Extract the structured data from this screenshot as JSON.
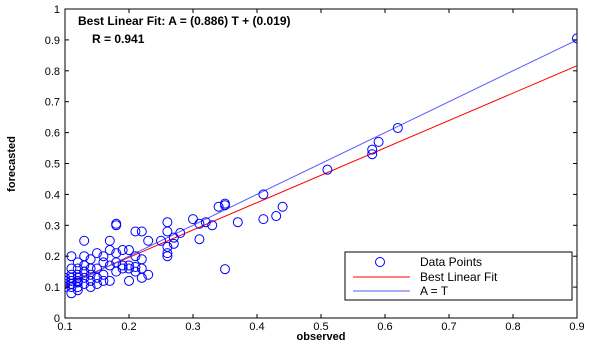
{
  "chart_data": {
    "type": "scatter",
    "xlabel": "observed",
    "ylabel": "forecasted",
    "xlim": [
      0.1,
      0.9
    ],
    "ylim": [
      0,
      1
    ],
    "xticks": [
      "0.1",
      "0.2",
      "0.3",
      "0.4",
      "0.5",
      "0.6",
      "0.7",
      "0.8",
      "0.9"
    ],
    "yticks": [
      "0",
      "0.1",
      "0.2",
      "0.3",
      "0.4",
      "0.5",
      "0.6",
      "0.7",
      "0.8",
      "0.9",
      "1"
    ],
    "grid": false,
    "legend_position": "bottom-right",
    "annotation": {
      "line1": "Best Linear Fit:  A = (0.886) T + (0.019)",
      "line2": "R = 0.941"
    },
    "series": [
      {
        "name": "Data Points",
        "kind": "scatter",
        "marker": "circle",
        "color": "#0000ff",
        "points": [
          [
            0.9,
            0.905
          ],
          [
            0.62,
            0.615
          ],
          [
            0.59,
            0.57
          ],
          [
            0.58,
            0.545
          ],
          [
            0.58,
            0.53
          ],
          [
            0.51,
            0.48
          ],
          [
            0.41,
            0.4
          ],
          [
            0.44,
            0.36
          ],
          [
            0.43,
            0.33
          ],
          [
            0.41,
            0.32
          ],
          [
            0.35,
            0.37
          ],
          [
            0.35,
            0.365
          ],
          [
            0.34,
            0.36
          ],
          [
            0.37,
            0.31
          ],
          [
            0.31,
            0.305
          ],
          [
            0.33,
            0.3
          ],
          [
            0.32,
            0.31
          ],
          [
            0.35,
            0.158
          ],
          [
            0.3,
            0.32
          ],
          [
            0.26,
            0.31
          ],
          [
            0.31,
            0.255
          ],
          [
            0.26,
            0.28
          ],
          [
            0.28,
            0.275
          ],
          [
            0.27,
            0.26
          ],
          [
            0.27,
            0.24
          ],
          [
            0.26,
            0.23
          ],
          [
            0.26,
            0.21
          ],
          [
            0.26,
            0.2
          ],
          [
            0.25,
            0.25
          ],
          [
            0.23,
            0.25
          ],
          [
            0.22,
            0.28
          ],
          [
            0.21,
            0.28
          ],
          [
            0.18,
            0.305
          ],
          [
            0.18,
            0.3
          ],
          [
            0.17,
            0.25
          ],
          [
            0.13,
            0.25
          ],
          [
            0.2,
            0.22
          ],
          [
            0.21,
            0.2
          ],
          [
            0.19,
            0.22
          ],
          [
            0.22,
            0.19
          ],
          [
            0.22,
            0.16
          ],
          [
            0.23,
            0.14
          ],
          [
            0.22,
            0.13
          ],
          [
            0.21,
            0.15
          ],
          [
            0.2,
            0.17
          ],
          [
            0.21,
            0.165
          ],
          [
            0.2,
            0.16
          ],
          [
            0.19,
            0.16
          ],
          [
            0.18,
            0.15
          ],
          [
            0.19,
            0.17
          ],
          [
            0.18,
            0.18
          ],
          [
            0.17,
            0.17
          ],
          [
            0.16,
            0.2
          ],
          [
            0.17,
            0.22
          ],
          [
            0.16,
            0.14
          ],
          [
            0.15,
            0.16
          ],
          [
            0.15,
            0.13
          ],
          [
            0.14,
            0.19
          ],
          [
            0.14,
            0.14
          ],
          [
            0.14,
            0.12
          ],
          [
            0.14,
            0.1
          ],
          [
            0.13,
            0.2
          ],
          [
            0.13,
            0.17
          ],
          [
            0.13,
            0.15
          ],
          [
            0.13,
            0.13
          ],
          [
            0.13,
            0.11
          ],
          [
            0.12,
            0.18
          ],
          [
            0.12,
            0.16
          ],
          [
            0.12,
            0.14
          ],
          [
            0.12,
            0.12
          ],
          [
            0.12,
            0.1
          ],
          [
            0.11,
            0.2
          ],
          [
            0.11,
            0.16
          ],
          [
            0.11,
            0.14
          ],
          [
            0.11,
            0.13
          ],
          [
            0.11,
            0.12
          ],
          [
            0.11,
            0.11
          ],
          [
            0.11,
            0.1
          ],
          [
            0.1,
            0.13
          ],
          [
            0.1,
            0.12
          ],
          [
            0.1,
            0.11
          ],
          [
            0.1,
            0.1
          ],
          [
            0.11,
            0.08
          ],
          [
            0.12,
            0.09
          ],
          [
            0.12,
            0.13
          ],
          [
            0.16,
            0.18
          ],
          [
            0.15,
            0.11
          ],
          [
            0.17,
            0.12
          ],
          [
            0.14,
            0.16
          ],
          [
            0.16,
            0.12
          ],
          [
            0.18,
            0.21
          ],
          [
            0.2,
            0.12
          ],
          [
            0.15,
            0.21
          ],
          [
            0.13,
            0.15
          ],
          [
            0.12,
            0.115
          ]
        ]
      },
      {
        "name": "Best Linear Fit",
        "kind": "line",
        "color": "#ff0000",
        "x": [
          0.1,
          0.9
        ],
        "y": [
          0.1076,
          0.8164
        ]
      },
      {
        "name": "A = T",
        "kind": "line",
        "color": "#5a5aff",
        "x": [
          0.1,
          0.9
        ],
        "y": [
          0.1,
          0.9
        ]
      }
    ]
  }
}
